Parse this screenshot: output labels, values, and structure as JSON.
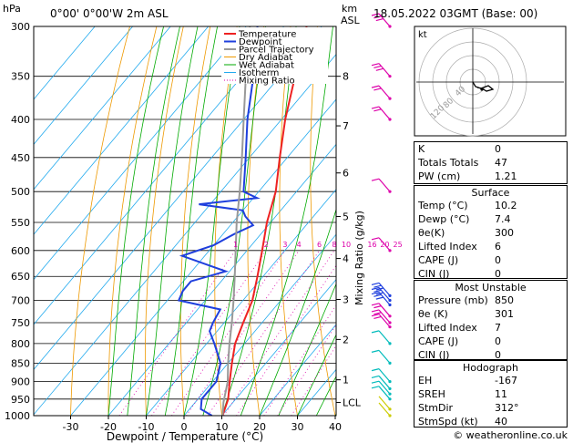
{
  "header": {
    "hpa_label": "hPa",
    "location": "0°00'  0°00'W  2m  ASL",
    "km_label": "km",
    "asl_label": "ASL",
    "datetime": "18.05.2022  03GMT  (Base: 00)"
  },
  "footer": {
    "credit": "© weatheronline.co.uk"
  },
  "colors": {
    "temperature": "#ee2222",
    "dewpoint": "#1f3fdd",
    "parcel": "#999999",
    "dry_adiabat": "#ee9900",
    "wet_adiabat": "#00aa00",
    "isotherm": "#22aaee",
    "mixing_ratio": "#dd00aa",
    "wind": "#dd00aa",
    "wind_low": "#00bbbb"
  },
  "chart_data": {
    "type": "line",
    "xlabel": "Dewpoint / Temperature (°C)",
    "ylabel": "Mixing Ratio (g/kg)",
    "pressure_ticks": [
      300,
      350,
      400,
      450,
      500,
      550,
      600,
      650,
      700,
      750,
      800,
      850,
      900,
      950,
      1000
    ],
    "temp_ticks": [
      -30,
      -20,
      -10,
      0,
      10,
      20,
      30,
      40
    ],
    "xlim": [
      -40,
      40
    ],
    "ylim": [
      1000,
      300
    ],
    "height_ticks": [
      {
        "label": "8",
        "p": 350
      },
      {
        "label": "7",
        "p": 408
      },
      {
        "label": "6",
        "p": 472
      },
      {
        "label": "5",
        "p": 540
      },
      {
        "label": "4",
        "p": 615
      },
      {
        "label": "3",
        "p": 698
      },
      {
        "label": "2",
        "p": 790
      },
      {
        "label": "1",
        "p": 895
      },
      {
        "label": "LCL",
        "p": 960
      }
    ],
    "mixing_ratio_values": [
      "1",
      "2",
      "3",
      "4",
      "6",
      "8",
      "10",
      "16",
      "20",
      "25"
    ],
    "legend": [
      "Temperature",
      "Dewpoint",
      "Parcel Trajectory",
      "Dry Adiabat",
      "Wet Adiabat",
      "Isotherm",
      "Mixing Ratio"
    ],
    "series": [
      {
        "name": "Temperature",
        "points": [
          [
            1000,
            10.2
          ],
          [
            950,
            8
          ],
          [
            900,
            4.5
          ],
          [
            850,
            1
          ],
          [
            800,
            -2.5
          ],
          [
            750,
            -5
          ],
          [
            700,
            -7.5
          ],
          [
            650,
            -11.5
          ],
          [
            600,
            -16
          ],
          [
            550,
            -21
          ],
          [
            500,
            -25.5
          ],
          [
            450,
            -32
          ],
          [
            400,
            -39
          ],
          [
            350,
            -46
          ],
          [
            300,
            -54
          ]
        ]
      },
      {
        "name": "Dewpoint",
        "points": [
          [
            1000,
            7.4
          ],
          [
            980,
            3
          ],
          [
            950,
            1
          ],
          [
            900,
            1
          ],
          [
            850,
            -2
          ],
          [
            800,
            -8
          ],
          [
            770,
            -12
          ],
          [
            750,
            -13
          ],
          [
            720,
            -14
          ],
          [
            700,
            -27
          ],
          [
            680,
            -28
          ],
          [
            660,
            -28
          ],
          [
            640,
            -21
          ],
          [
            610,
            -36
          ],
          [
            590,
            -30
          ],
          [
            570,
            -27
          ],
          [
            555,
            -24
          ],
          [
            540,
            -28
          ],
          [
            530,
            -30
          ],
          [
            520,
            -43
          ],
          [
            510,
            -29
          ],
          [
            500,
            -34
          ],
          [
            450,
            -41
          ],
          [
            400,
            -49
          ],
          [
            350,
            -57
          ],
          [
            300,
            -67
          ]
        ]
      },
      {
        "name": "Parcel Trajectory",
        "points": [
          [
            1000,
            10.2
          ],
          [
            960,
            7.5
          ],
          [
            900,
            4
          ],
          [
            850,
            0
          ],
          [
            800,
            -4
          ],
          [
            750,
            -8
          ],
          [
            700,
            -12.5
          ],
          [
            650,
            -17.5
          ],
          [
            600,
            -23
          ],
          [
            550,
            -29
          ],
          [
            500,
            -35
          ],
          [
            450,
            -42
          ],
          [
            400,
            -50
          ],
          [
            350,
            -59
          ],
          [
            300,
            -69
          ]
        ]
      }
    ]
  },
  "wind": {
    "title": "kt",
    "hodo_labels": [
      "120",
      "80",
      "40"
    ]
  },
  "indices": {
    "top": [
      {
        "k": "K",
        "v": "0"
      },
      {
        "k": "Totals Totals",
        "v": "47"
      },
      {
        "k": "PW (cm)",
        "v": "1.21"
      }
    ],
    "surface_title": "Surface",
    "surface": [
      {
        "k": "Temp (°C)",
        "v": "10.2"
      },
      {
        "k": "Dewp (°C)",
        "v": "7.4"
      },
      {
        "k": "θe(K)",
        "v": "300"
      },
      {
        "k": "Lifted Index",
        "v": "6"
      },
      {
        "k": "CAPE (J)",
        "v": "0"
      },
      {
        "k": "CIN (J)",
        "v": "0"
      }
    ],
    "unstable_title": "Most Unstable",
    "unstable": [
      {
        "k": "Pressure (mb)",
        "v": "850"
      },
      {
        "k": "θe (K)",
        "v": "301"
      },
      {
        "k": "Lifted Index",
        "v": "7"
      },
      {
        "k": "CAPE (J)",
        "v": "0"
      },
      {
        "k": "CIN (J)",
        "v": "0"
      }
    ],
    "hodo_title": "Hodograph",
    "hodograph": [
      {
        "k": "EH",
        "v": "-167"
      },
      {
        "k": "SREH",
        "v": "11"
      },
      {
        "k": "StmDir",
        "v": "312°"
      },
      {
        "k": "StmSpd (kt)",
        "v": "40"
      }
    ]
  }
}
